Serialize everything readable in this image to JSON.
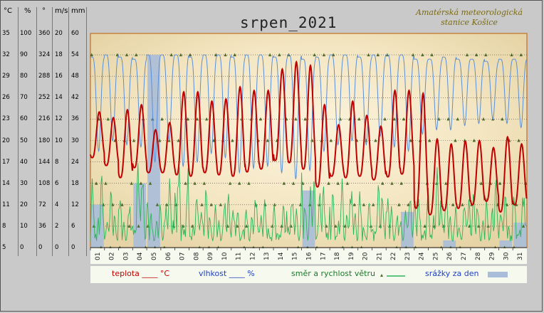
{
  "title": "srpen_2021",
  "station": {
    "line1": "Amatérská meteorologická",
    "line2": "stanice Košice"
  },
  "units": [
    "°C",
    "%",
    "°",
    "m/s",
    "mm"
  ],
  "axes": {
    "temp": [
      35,
      32,
      29,
      26,
      23,
      20,
      17,
      14,
      11,
      8,
      5
    ],
    "humidity": [
      100,
      90,
      80,
      70,
      60,
      50,
      40,
      30,
      20,
      10,
      0
    ],
    "direction": [
      360,
      324,
      288,
      252,
      216,
      180,
      144,
      108,
      72,
      36,
      0
    ],
    "speed": [
      20,
      18,
      16,
      14,
      12,
      10,
      8,
      6,
      4,
      2,
      0
    ],
    "rain": [
      60,
      54,
      48,
      42,
      36,
      30,
      24,
      18,
      12,
      6,
      0
    ]
  },
  "legend": {
    "temp": "teplota ____ °C",
    "humidity": "vlhkost ____ %",
    "wind": "směr a rychlost větru",
    "rain": "srážky za den"
  },
  "colors": {
    "temp": "#c00000",
    "humidity": "#5b8fd6",
    "wind": "#2db35a",
    "direction": "#4e6b2a",
    "rain": "#a9bcd9"
  },
  "chart_data": {
    "type": "line",
    "title": "srpen_2021",
    "days": [
      "01",
      "02",
      "03",
      "04",
      "05",
      "06",
      "07",
      "08",
      "09",
      "10",
      "11",
      "12",
      "13",
      "14",
      "15",
      "16",
      "17",
      "18",
      "19",
      "20",
      "21",
      "22",
      "23",
      "24",
      "25",
      "26",
      "27",
      "28",
      "29",
      "30",
      "31"
    ],
    "temp_min": [
      17.6,
      16.5,
      14.8,
      16.2,
      15.5,
      15.5,
      15.2,
      15.0,
      15.5,
      15.2,
      15.0,
      15.6,
      16.0,
      17.2,
      16.9,
      16.0,
      13.5,
      15.0,
      14.8,
      15.0,
      14.5,
      14.9,
      15.3,
      10.5,
      9.6,
      10.2,
      10.5,
      11.0,
      11.5,
      10.0,
      11.0
    ],
    "temp_max": [
      24.0,
      23.2,
      24.3,
      25.0,
      21.5,
      22.5,
      26.8,
      26.8,
      25.5,
      25.8,
      27.5,
      27.0,
      27.0,
      30.0,
      31.0,
      30.5,
      25.0,
      22.2,
      25.5,
      23.5,
      22.0,
      27.0,
      27.0,
      26.6,
      20.2,
      19.5,
      19.9,
      20.0,
      19.0,
      20.5,
      19.5
    ],
    "humidity_min": [
      45,
      50,
      48,
      47,
      40,
      50,
      38,
      40,
      44,
      42,
      35,
      37,
      38,
      35,
      32,
      36,
      45,
      48,
      50,
      48,
      52,
      47,
      45,
      53,
      55,
      55,
      57,
      58,
      60,
      58,
      56
    ],
    "humidity_max": [
      89,
      90,
      89,
      88,
      90,
      90,
      90,
      89,
      90,
      90,
      89,
      90,
      90,
      89,
      90,
      88,
      89,
      90,
      90,
      89,
      90,
      90,
      90,
      88,
      88,
      89,
      88,
      88,
      87,
      88,
      88
    ],
    "rain_mm": [
      12,
      0,
      0,
      18,
      54,
      0,
      0,
      0,
      0,
      0,
      0,
      0,
      0,
      0,
      0,
      16,
      0,
      0,
      0,
      0,
      0,
      0,
      10,
      0,
      0,
      2,
      0,
      0,
      0,
      2,
      7
    ],
    "wind_speed_max": [
      7,
      5,
      5,
      9,
      4,
      6,
      9,
      5,
      5,
      5,
      4,
      5,
      4,
      4,
      5,
      8,
      6,
      6,
      6,
      5,
      6,
      5,
      5,
      5,
      7,
      5,
      5,
      5,
      6,
      5,
      6
    ],
    "wind_direction_levels_deg": [
      324,
      216,
      180,
      108,
      72,
      36,
      0
    ],
    "ylim": {
      "temp": [
        5,
        35
      ],
      "humidity": [
        0,
        100
      ],
      "direction": [
        0,
        360
      ],
      "speed": [
        0,
        20
      ],
      "rain": [
        0,
        60
      ]
    }
  }
}
